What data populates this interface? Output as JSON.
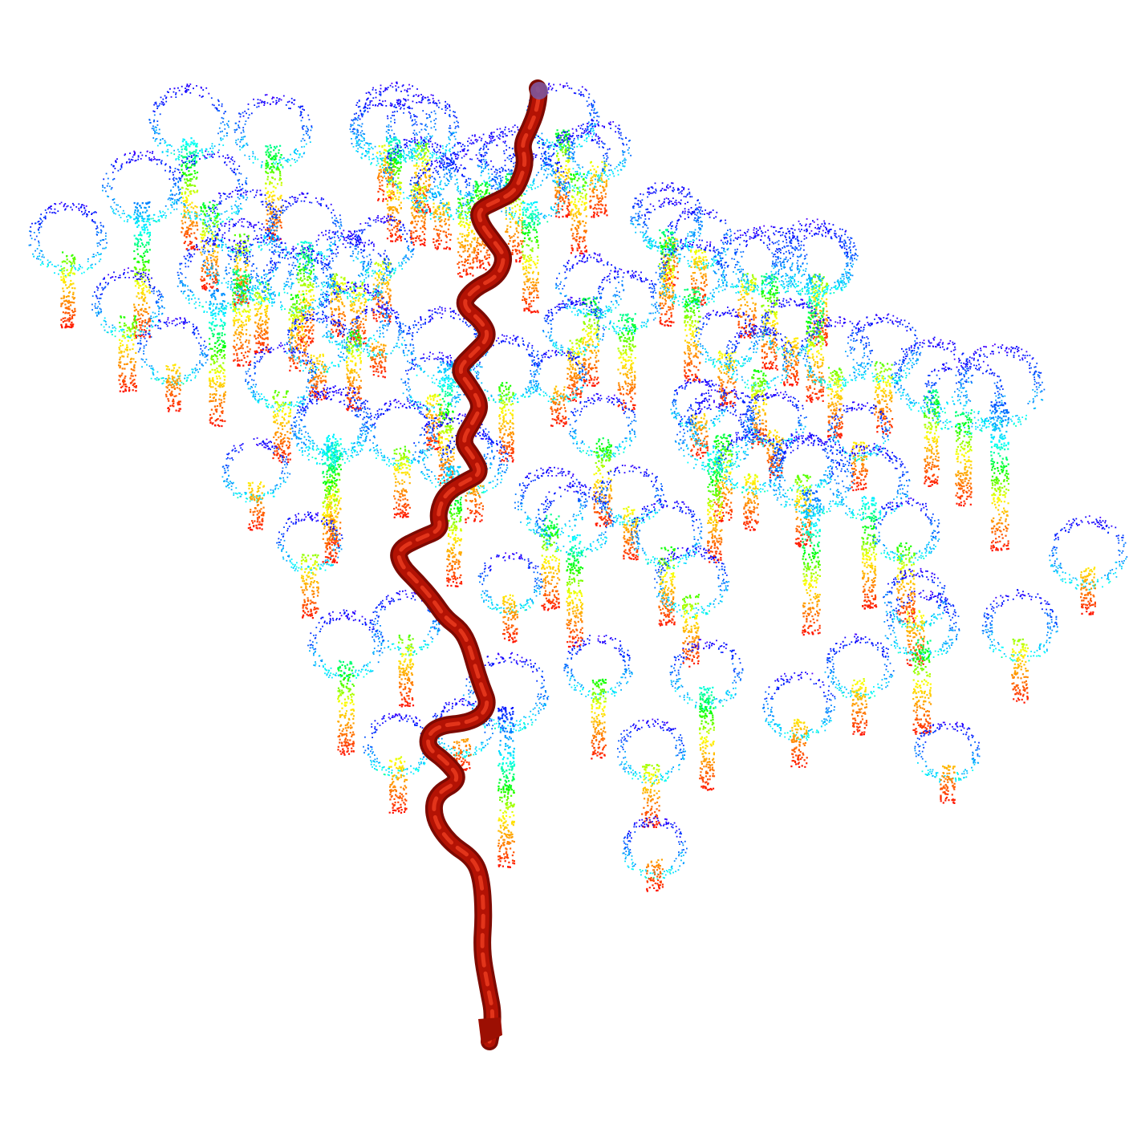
{
  "scene": {
    "description_kind": "3d-point-cloud-trees-with-path",
    "colormap": [
      "#ff0000",
      "#ff7f00",
      "#ffff00",
      "#00ff00",
      "#00ffff",
      "#0080ff",
      "#0000ff",
      "#8000ff"
    ],
    "path_color": "#b31204",
    "path_highlight": "#e2341a",
    "start_marker_color": "#7a5aa6",
    "tree_count": 95
  }
}
